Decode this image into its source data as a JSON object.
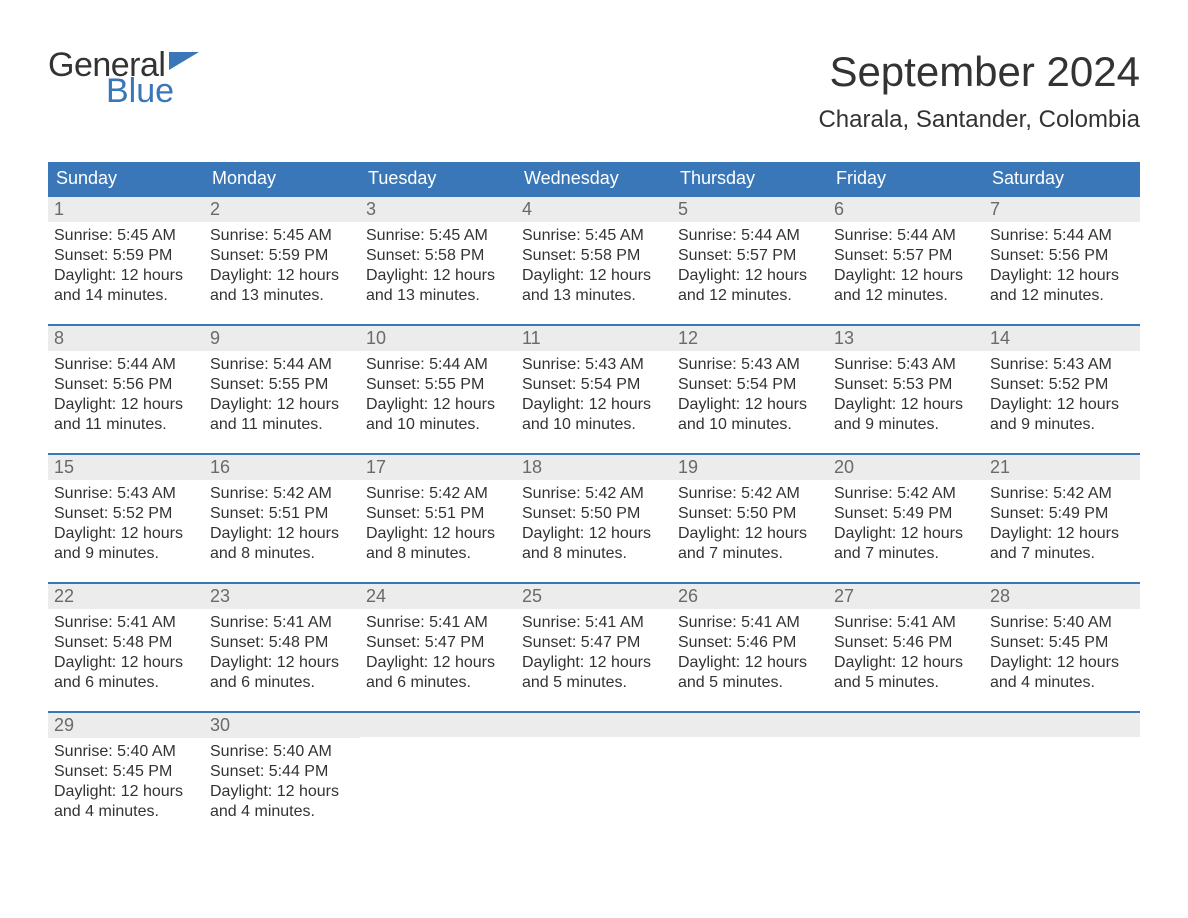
{
  "logo": {
    "word1": "General",
    "word2": "Blue",
    "flag_color": "#3a77b8"
  },
  "title": "September 2024",
  "location": "Charala, Santander, Colombia",
  "colors": {
    "header_bg": "#3a77b8",
    "header_text": "#ffffff",
    "daynum_bg": "#ececec",
    "daynum_text": "#6a6a6a",
    "body_text": "#333333",
    "cell_border_top": "#3a77b8",
    "page_bg": "#ffffff"
  },
  "typography": {
    "title_fontsize": 42,
    "location_fontsize": 24,
    "weekday_fontsize": 18,
    "daynum_fontsize": 18,
    "body_fontsize": 16,
    "logo_fontsize": 34
  },
  "layout": {
    "columns": 7,
    "rows": 5
  },
  "weekdays": [
    "Sunday",
    "Monday",
    "Tuesday",
    "Wednesday",
    "Thursday",
    "Friday",
    "Saturday"
  ],
  "days": [
    {
      "n": "1",
      "sunrise": "5:45 AM",
      "sunset": "5:59 PM",
      "daylight": "12 hours and 14 minutes."
    },
    {
      "n": "2",
      "sunrise": "5:45 AM",
      "sunset": "5:59 PM",
      "daylight": "12 hours and 13 minutes."
    },
    {
      "n": "3",
      "sunrise": "5:45 AM",
      "sunset": "5:58 PM",
      "daylight": "12 hours and 13 minutes."
    },
    {
      "n": "4",
      "sunrise": "5:45 AM",
      "sunset": "5:58 PM",
      "daylight": "12 hours and 13 minutes."
    },
    {
      "n": "5",
      "sunrise": "5:44 AM",
      "sunset": "5:57 PM",
      "daylight": "12 hours and 12 minutes."
    },
    {
      "n": "6",
      "sunrise": "5:44 AM",
      "sunset": "5:57 PM",
      "daylight": "12 hours and 12 minutes."
    },
    {
      "n": "7",
      "sunrise": "5:44 AM",
      "sunset": "5:56 PM",
      "daylight": "12 hours and 12 minutes."
    },
    {
      "n": "8",
      "sunrise": "5:44 AM",
      "sunset": "5:56 PM",
      "daylight": "12 hours and 11 minutes."
    },
    {
      "n": "9",
      "sunrise": "5:44 AM",
      "sunset": "5:55 PM",
      "daylight": "12 hours and 11 minutes."
    },
    {
      "n": "10",
      "sunrise": "5:44 AM",
      "sunset": "5:55 PM",
      "daylight": "12 hours and 10 minutes."
    },
    {
      "n": "11",
      "sunrise": "5:43 AM",
      "sunset": "5:54 PM",
      "daylight": "12 hours and 10 minutes."
    },
    {
      "n": "12",
      "sunrise": "5:43 AM",
      "sunset": "5:54 PM",
      "daylight": "12 hours and 10 minutes."
    },
    {
      "n": "13",
      "sunrise": "5:43 AM",
      "sunset": "5:53 PM",
      "daylight": "12 hours and 9 minutes."
    },
    {
      "n": "14",
      "sunrise": "5:43 AM",
      "sunset": "5:52 PM",
      "daylight": "12 hours and 9 minutes."
    },
    {
      "n": "15",
      "sunrise": "5:43 AM",
      "sunset": "5:52 PM",
      "daylight": "12 hours and 9 minutes."
    },
    {
      "n": "16",
      "sunrise": "5:42 AM",
      "sunset": "5:51 PM",
      "daylight": "12 hours and 8 minutes."
    },
    {
      "n": "17",
      "sunrise": "5:42 AM",
      "sunset": "5:51 PM",
      "daylight": "12 hours and 8 minutes."
    },
    {
      "n": "18",
      "sunrise": "5:42 AM",
      "sunset": "5:50 PM",
      "daylight": "12 hours and 8 minutes."
    },
    {
      "n": "19",
      "sunrise": "5:42 AM",
      "sunset": "5:50 PM",
      "daylight": "12 hours and 7 minutes."
    },
    {
      "n": "20",
      "sunrise": "5:42 AM",
      "sunset": "5:49 PM",
      "daylight": "12 hours and 7 minutes."
    },
    {
      "n": "21",
      "sunrise": "5:42 AM",
      "sunset": "5:49 PM",
      "daylight": "12 hours and 7 minutes."
    },
    {
      "n": "22",
      "sunrise": "5:41 AM",
      "sunset": "5:48 PM",
      "daylight": "12 hours and 6 minutes."
    },
    {
      "n": "23",
      "sunrise": "5:41 AM",
      "sunset": "5:48 PM",
      "daylight": "12 hours and 6 minutes."
    },
    {
      "n": "24",
      "sunrise": "5:41 AM",
      "sunset": "5:47 PM",
      "daylight": "12 hours and 6 minutes."
    },
    {
      "n": "25",
      "sunrise": "5:41 AM",
      "sunset": "5:47 PM",
      "daylight": "12 hours and 5 minutes."
    },
    {
      "n": "26",
      "sunrise": "5:41 AM",
      "sunset": "5:46 PM",
      "daylight": "12 hours and 5 minutes."
    },
    {
      "n": "27",
      "sunrise": "5:41 AM",
      "sunset": "5:46 PM",
      "daylight": "12 hours and 5 minutes."
    },
    {
      "n": "28",
      "sunrise": "5:40 AM",
      "sunset": "5:45 PM",
      "daylight": "12 hours and 4 minutes."
    },
    {
      "n": "29",
      "sunrise": "5:40 AM",
      "sunset": "5:45 PM",
      "daylight": "12 hours and 4 minutes."
    },
    {
      "n": "30",
      "sunrise": "5:40 AM",
      "sunset": "5:44 PM",
      "daylight": "12 hours and 4 minutes."
    }
  ],
  "labels": {
    "sunrise": "Sunrise:",
    "sunset": "Sunset:",
    "daylight": "Daylight:"
  }
}
